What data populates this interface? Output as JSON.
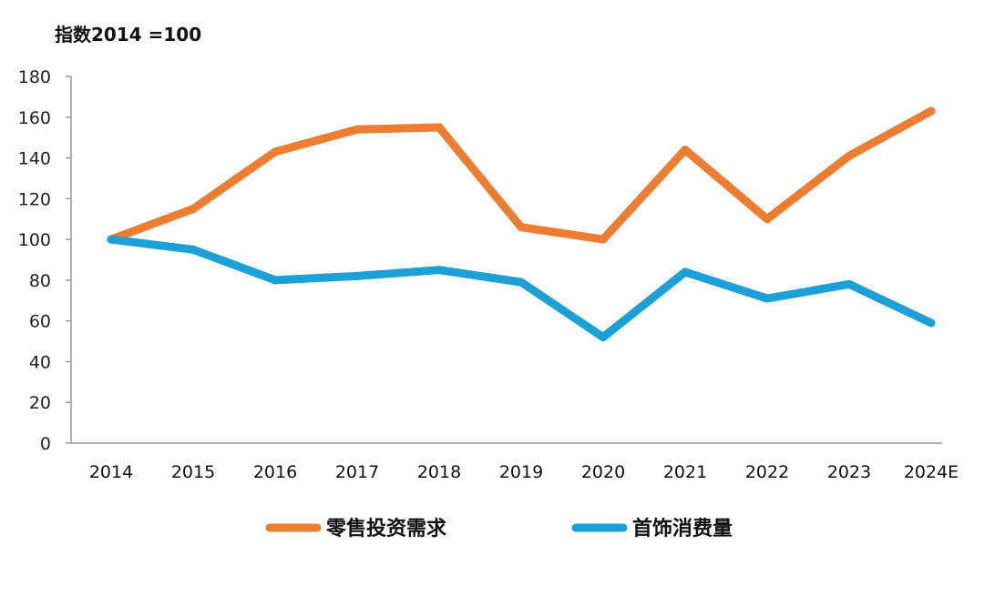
{
  "chart_data": {
    "type": "line",
    "unit_label": "指数2014 =100",
    "categories": [
      "2014",
      "2015",
      "2016",
      "2017",
      "2018",
      "2019",
      "2020",
      "2021",
      "2022",
      "2023",
      "2024E"
    ],
    "ylim": [
      0,
      180
    ],
    "y_ticks": [
      0,
      20,
      40,
      60,
      80,
      100,
      120,
      140,
      160,
      180
    ],
    "grid": false,
    "legend_position": "bottom",
    "series": [
      {
        "name": "零售投资需求",
        "color": "#ED7D31",
        "values": [
          100,
          115,
          143,
          154,
          155,
          106,
          100,
          144,
          110,
          141,
          163
        ]
      },
      {
        "name": "首饰消费量",
        "color": "#1BA1D8",
        "values": [
          100,
          95,
          80,
          82,
          85,
          79,
          52,
          84,
          71,
          78,
          59
        ]
      }
    ]
  }
}
